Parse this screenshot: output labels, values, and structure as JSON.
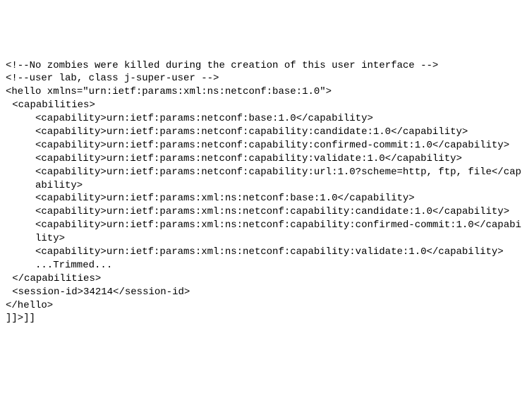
{
  "code": {
    "font_family": "Courier New",
    "font_size_pt": 11,
    "text_color": "#000000",
    "background_color": "#ffffff",
    "lines": [
      {
        "indent": "",
        "text": "<!--No zombies were killed during the creation of this user interface -->"
      },
      {
        "indent": "",
        "text": "<!--user lab, class j-super-user -->"
      },
      {
        "indent": "",
        "text": "<hello xmlns=\"urn:ietf:params:xml:ns:netconf:base:1.0\">"
      },
      {
        "indent": "indent1",
        "text": "<capabilities>"
      },
      {
        "indent": "indent3",
        "text": "<capability>urn:ietf:params:netconf:base:1.0</capability>"
      },
      {
        "indent": "indent3",
        "text": "<capability>urn:ietf:params:netconf:capability:candidate:1.0</capability>"
      },
      {
        "indent": "indent3",
        "text": "<capability>urn:ietf:params:netconf:capability:confirmed-commit:1.0</capability>"
      },
      {
        "indent": "indent3",
        "text": "<capability>urn:ietf:params:netconf:capability:validate:1.0</capability>"
      },
      {
        "indent": "indent3",
        "text": "<capability>urn:ietf:params:netconf:capability:url:1.0?scheme=http, ftp, file</capability>"
      },
      {
        "indent": "indent3",
        "text": "<capability>urn:ietf:params:xml:ns:netconf:base:1.0</capability>"
      },
      {
        "indent": "indent3",
        "text": "<capability>urn:ietf:params:xml:ns:netconf:capability:candidate:1.0</capability>"
      },
      {
        "indent": "indent3",
        "text": "<capability>urn:ietf:params:xml:ns:netconf:capability:confirmed-commit:1.0</capability>"
      },
      {
        "indent": "indent3",
        "text": "<capability>urn:ietf:params:xml:ns:netconf:capability:validate:1.0</capability>"
      },
      {
        "indent": "indent3",
        "text": "...Trimmed..."
      },
      {
        "indent": "indent1",
        "text": "</capabilities>"
      },
      {
        "indent": "indent1",
        "text": "<session-id>34214</session-id>"
      },
      {
        "indent": "",
        "text": "</hello>"
      },
      {
        "indent": "",
        "text": "]]>]]"
      }
    ]
  }
}
